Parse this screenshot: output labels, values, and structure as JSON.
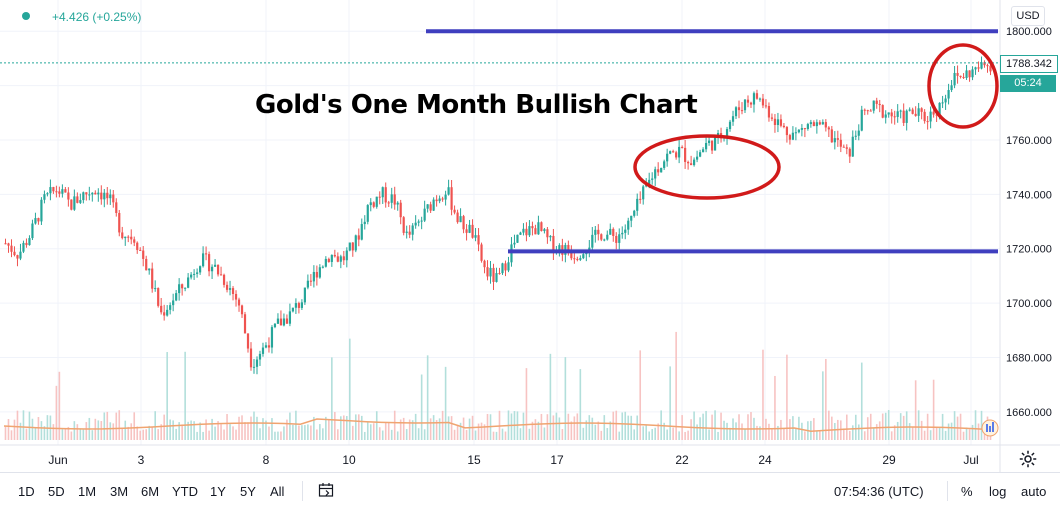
{
  "header": {
    "change_text": "+4.426 (+0.25%)",
    "currency": "USD"
  },
  "title": "Gold's One Month Bullish Chart",
  "last_price_label": "1788.342",
  "countdown": "05:24",
  "bottom_bar": {
    "ranges": [
      "1D",
      "5D",
      "1M",
      "3M",
      "6M",
      "YTD",
      "1Y",
      "5Y",
      "All"
    ],
    "clock": "07:54:36 (UTC)",
    "percent_label": "%",
    "log_label": "log",
    "auto_label": "auto"
  },
  "colors": {
    "up": "#26a69a",
    "down": "#ef5350",
    "support_line": "#3f3fbf",
    "annotation": "#d11a1a",
    "volume_ma": "#f0a470"
  },
  "chart_data": {
    "type": "candlestick",
    "ylim": [
      1650,
      1810
    ],
    "y_ticks": [
      1660,
      1680,
      1700,
      1720,
      1740,
      1760,
      1780,
      1800
    ],
    "y_tick_labels": [
      "1660.000",
      "1680.000",
      "1700.000",
      "1720.000",
      "1740.000",
      "1760.000",
      "1780.000",
      "1800.000"
    ],
    "x_tick_labels": [
      "Jun",
      "3",
      "8",
      "10",
      "15",
      "17",
      "22",
      "24",
      "29",
      "Jul"
    ],
    "close_path": [
      1722,
      1718,
      1726,
      1738,
      1742,
      1736,
      1740,
      1742,
      1738,
      1726,
      1724,
      1712,
      1696,
      1702,
      1708,
      1716,
      1714,
      1708,
      1700,
      1678,
      1684,
      1692,
      1696,
      1702,
      1712,
      1718,
      1716,
      1722,
      1736,
      1740,
      1738,
      1724,
      1730,
      1738,
      1742,
      1730,
      1726,
      1712,
      1708,
      1720,
      1726,
      1728,
      1722,
      1720,
      1718,
      1722,
      1726,
      1724,
      1728,
      1738,
      1748,
      1754,
      1756,
      1752,
      1758,
      1760,
      1768,
      1774,
      1776,
      1770,
      1764,
      1762,
      1766,
      1764,
      1760,
      1754,
      1768,
      1772,
      1770,
      1768,
      1770,
      1768,
      1772,
      1782,
      1784,
      1786,
      1788
    ],
    "last_price": 1788.342,
    "horizontal_lines": [
      1800,
      1719
    ],
    "annotation": "Gold's One Month Bullish Chart"
  }
}
